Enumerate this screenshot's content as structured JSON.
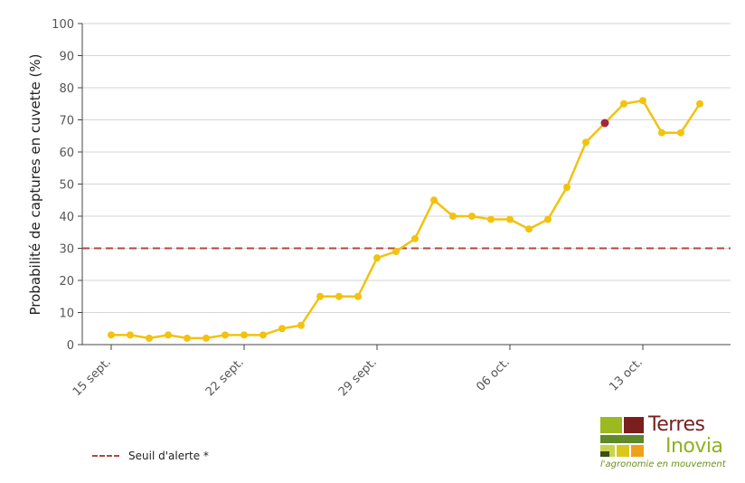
{
  "chart_data": {
    "type": "line",
    "title": "",
    "xlabel": "",
    "ylabel": "Probabilité de captures en cuvette (%)",
    "ylim": [
      0,
      100
    ],
    "yticks": [
      0,
      10,
      20,
      30,
      40,
      50,
      60,
      70,
      80,
      90,
      100
    ],
    "xticks": [
      "15 sept.",
      "22 sept.",
      "29 sept.",
      "06 oct.",
      "13 oct."
    ],
    "grid": true,
    "series": [
      {
        "color": "#f2c20f",
        "x": [
          "15/09",
          "16/09",
          "17/09",
          "18/09",
          "19/09",
          "20/09",
          "21/09",
          "22/09",
          "23/09",
          "24/09",
          "25/09",
          "26/09",
          "27/09",
          "28/09",
          "29/09",
          "30/09",
          "01/10",
          "02/10",
          "03/10",
          "04/10",
          "05/10",
          "06/10",
          "07/10",
          "08/10",
          "09/10",
          "10/10",
          "11/10",
          "12/10",
          "13/10",
          "14/10",
          "15/10",
          "16/10"
        ],
        "values": [
          3,
          3,
          2,
          3,
          2,
          2,
          3,
          3,
          3,
          5,
          6,
          15,
          15,
          15,
          27,
          29,
          33,
          45,
          40,
          40,
          39,
          39,
          36,
          39,
          49,
          63,
          69,
          75,
          76,
          66,
          66,
          75
        ],
        "highlight_index": 26,
        "highlight_color": "#a3283f"
      }
    ],
    "threshold": {
      "value": 30,
      "color": "#b5473f",
      "label": "Seuil d'alerte *"
    }
  },
  "legend": {
    "label": "Seuil d'alerte *"
  },
  "logo": {
    "word1": "Terres",
    "word2": "Inovia",
    "tagline": "l'agronomie en mouvement"
  }
}
